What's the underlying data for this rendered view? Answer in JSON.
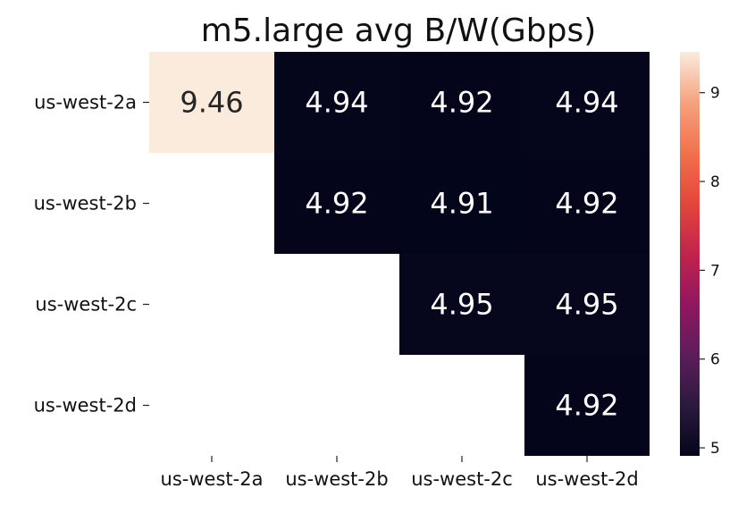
{
  "chart_data": {
    "type": "heatmap",
    "title": "m5.large avg B/W(Gbps)",
    "rows": [
      "us-west-2a",
      "us-west-2b",
      "us-west-2c",
      "us-west-2d"
    ],
    "columns": [
      "us-west-2a",
      "us-west-2b",
      "us-west-2c",
      "us-west-2d"
    ],
    "values": [
      [
        9.46,
        4.94,
        4.92,
        4.94
      ],
      [
        null,
        4.92,
        4.91,
        4.92
      ],
      [
        null,
        null,
        4.95,
        4.95
      ],
      [
        null,
        null,
        null,
        4.92
      ]
    ],
    "value_labels": [
      [
        "9.46",
        "4.94",
        "4.92",
        "4.94"
      ],
      [
        null,
        "4.92",
        "4.91",
        "4.92"
      ],
      [
        null,
        null,
        "4.95",
        "4.95"
      ],
      [
        null,
        null,
        null,
        "4.92"
      ]
    ],
    "masked": "lower-triangle",
    "colormap": "rocket",
    "colorbar": {
      "vmin": 4.91,
      "vmax": 9.46,
      "ticks": [
        5,
        6,
        7,
        8,
        9
      ],
      "tick_labels": [
        "5",
        "6",
        "7",
        "8",
        "9"
      ]
    },
    "grid": false,
    "legend": "colorbar-right"
  }
}
